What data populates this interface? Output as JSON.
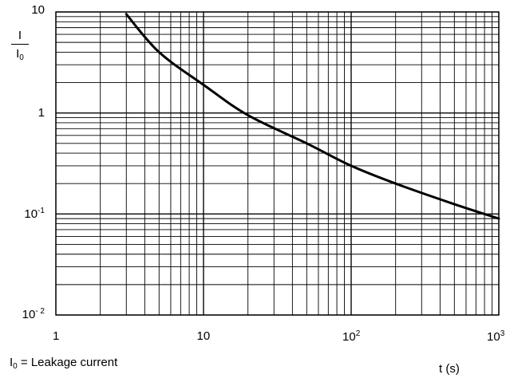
{
  "chart_data": {
    "type": "line",
    "x_scale": "log",
    "y_scale": "log",
    "xlim": [
      1,
      1000
    ],
    "ylim": [
      0.01,
      10
    ],
    "grid": true,
    "ylabel": {
      "numerator": "I",
      "denominator": "I",
      "denominator_sub": "0"
    },
    "xlabel": "t (s)",
    "note": {
      "base": "I",
      "sub": "0",
      "rest": " = Leakage current"
    },
    "x_ticks": [
      {
        "value": 1,
        "base": "1",
        "exp": ""
      },
      {
        "value": 10,
        "base": "10",
        "exp": ""
      },
      {
        "value": 100,
        "base": "10",
        "exp": "2"
      },
      {
        "value": 1000,
        "base": "10",
        "exp": "3"
      }
    ],
    "y_ticks": [
      {
        "value": 10,
        "base": "10",
        "exp": ""
      },
      {
        "value": 1,
        "base": "1",
        "exp": ""
      },
      {
        "value": 0.1,
        "base": "10",
        "exp": "-1"
      },
      {
        "value": 0.01,
        "base": "10",
        "exp": "- 2"
      }
    ],
    "series": [
      {
        "color": "#000000",
        "points": [
          {
            "x": 3,
            "y": 9.5
          },
          {
            "x": 5,
            "y": 4.0
          },
          {
            "x": 10,
            "y": 1.9
          },
          {
            "x": 20,
            "y": 0.95
          },
          {
            "x": 50,
            "y": 0.5
          },
          {
            "x": 100,
            "y": 0.3
          },
          {
            "x": 200,
            "y": 0.2
          },
          {
            "x": 500,
            "y": 0.125
          },
          {
            "x": 1000,
            "y": 0.09
          }
        ]
      }
    ]
  }
}
